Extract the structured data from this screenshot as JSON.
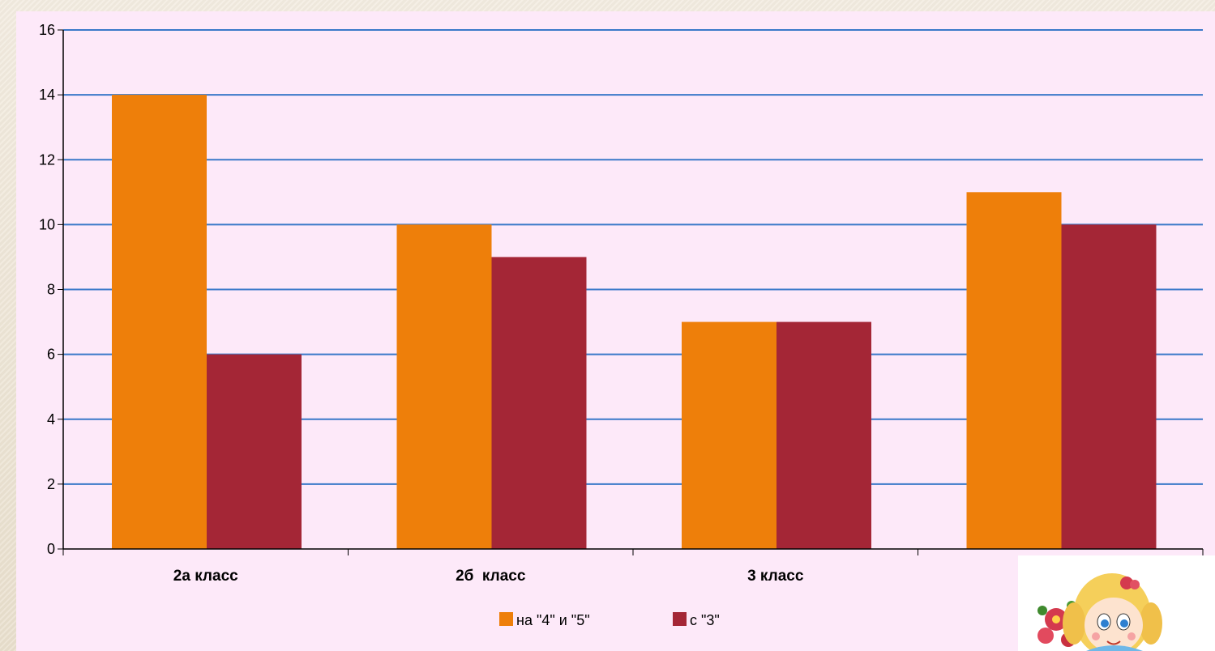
{
  "chart_data": {
    "type": "bar",
    "categories": [
      "2а класс",
      "2б  класс",
      "3 класс",
      ""
    ],
    "series": [
      {
        "name": "на \"4\" и \"5\"",
        "values": [
          14,
          10,
          7,
          11
        ]
      },
      {
        "name": "с \"3\"",
        "values": [
          6,
          9,
          7,
          10
        ]
      }
    ],
    "ylim": [
      0,
      16
    ],
    "yticks": [
      0,
      2,
      4,
      6,
      8,
      10,
      12,
      14,
      16
    ],
    "grid": true,
    "legend_position": "bottom"
  },
  "colors": {
    "series": [
      "#ee7f0a",
      "#a42636"
    ],
    "grid": "#3a79c9",
    "plot_background": "#fde9f9"
  },
  "decorations": {
    "corner_image": "cartoon-girl-with-flowers"
  }
}
